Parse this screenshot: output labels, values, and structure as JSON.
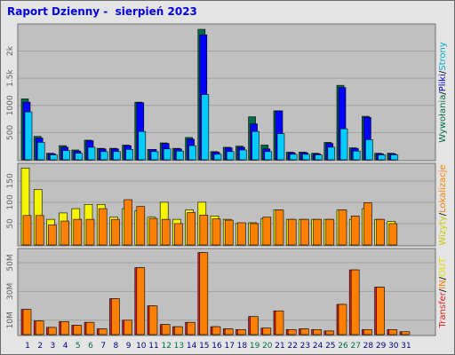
{
  "title": "Raport Dzienny -  sierpień 2023",
  "colors": {
    "background": "#e4e4e4",
    "panel": "#c0c0c0",
    "grid": "#a0a0a0",
    "wizyty": "#f5f500",
    "lokalizacje": "#ff8000",
    "strony": "#00ccff",
    "pliki": "#0000ff",
    "wywolania": "#006b4a",
    "transfer": "#e02020",
    "in": "#ff8000",
    "out": "#ffff00",
    "weekend_label": "#006b4a",
    "weekday_label": "#000080"
  },
  "legends": {
    "top": [
      {
        "text": "Wywołania",
        "color": "#006b4a"
      },
      {
        "text": "/",
        "color": "#000000"
      },
      {
        "text": "Pliki",
        "color": "#0000cc"
      },
      {
        "text": "/",
        "color": "#000000"
      },
      {
        "text": "Strony",
        "color": "#00aacc"
      }
    ],
    "middle": [
      {
        "text": "Wizyty",
        "color": "#c8c800"
      },
      {
        "text": "/",
        "color": "#000000"
      },
      {
        "text": "Lokalizacje",
        "color": "#ff8000"
      }
    ],
    "bottom": [
      {
        "text": "Transfer",
        "color": "#e02020"
      },
      {
        "text": "/",
        "color": "#000000"
      },
      {
        "text": "IN",
        "color": "#ff8000"
      },
      {
        "text": "/",
        "color": "#000000"
      },
      {
        "text": "OUT",
        "color": "#e0e000"
      }
    ]
  },
  "chart_data": [
    {
      "type": "bar",
      "x": [
        1,
        2,
        3,
        4,
        5,
        6,
        7,
        8,
        9,
        10,
        11,
        12,
        13,
        14,
        15,
        16,
        17,
        18,
        19,
        20,
        21,
        22,
        23,
        24,
        25,
        26,
        27,
        28,
        29,
        30,
        31
      ],
      "weekend_days": [
        5,
        6,
        12,
        13,
        19,
        20,
        26,
        27
      ],
      "y_ticks": [
        "500",
        "1000",
        "1.5k",
        "2k"
      ],
      "ylim": [
        0,
        2450
      ],
      "series": [
        {
          "name": "Wywołania",
          "values": [
            1120,
            430,
            120,
            260,
            180,
            360,
            210,
            210,
            270,
            1060,
            190,
            310,
            210,
            410,
            2400,
            150,
            230,
            250,
            790,
            270,
            900,
            140,
            140,
            120,
            320,
            1370,
            220,
            800,
            120,
            120,
            0
          ]
        },
        {
          "name": "Pliki",
          "values": [
            1060,
            400,
            110,
            230,
            160,
            350,
            200,
            200,
            260,
            1050,
            190,
            300,
            200,
            380,
            2300,
            140,
            220,
            230,
            660,
            200,
            900,
            130,
            130,
            110,
            300,
            1330,
            210,
            780,
            110,
            110,
            0
          ]
        },
        {
          "name": "Strony",
          "values": [
            880,
            320,
            90,
            170,
            120,
            230,
            150,
            150,
            190,
            520,
            150,
            200,
            160,
            260,
            1200,
            100,
            150,
            180,
            520,
            150,
            480,
            100,
            100,
            90,
            230,
            570,
            160,
            370,
            90,
            90,
            0
          ]
        }
      ]
    },
    {
      "type": "bar",
      "x": [
        1,
        2,
        3,
        4,
        5,
        6,
        7,
        8,
        9,
        10,
        11,
        12,
        13,
        14,
        15,
        16,
        17,
        18,
        19,
        20,
        21,
        22,
        23,
        24,
        25,
        26,
        27,
        28,
        29,
        30,
        31
      ],
      "y_ticks": [
        "50",
        "100",
        "150"
      ],
      "ylim": [
        0,
        185
      ],
      "series": [
        {
          "name": "Wizyty",
          "values": [
            180,
            130,
            60,
            75,
            85,
            95,
            95,
            65,
            85,
            80,
            65,
            100,
            60,
            82,
            100,
            68,
            60,
            50,
            52,
            62,
            82,
            60,
            60,
            60,
            60,
            82,
            60,
            85,
            60,
            55,
            0
          ]
        },
        {
          "name": "Lokalizacje",
          "values": [
            69,
            69,
            47,
            56,
            60,
            60,
            85,
            60,
            106,
            90,
            62,
            60,
            50,
            76,
            70,
            61,
            58,
            52,
            50,
            65,
            82,
            60,
            60,
            60,
            60,
            82,
            68,
            99,
            60,
            50,
            0
          ]
        }
      ]
    },
    {
      "type": "bar",
      "x": [
        1,
        2,
        3,
        4,
        5,
        6,
        7,
        8,
        9,
        10,
        11,
        12,
        13,
        14,
        15,
        16,
        17,
        18,
        19,
        20,
        21,
        22,
        23,
        24,
        25,
        26,
        27,
        28,
        29,
        30,
        31
      ],
      "y_ticks": [
        "10M",
        "30M",
        "50M"
      ],
      "ylim": [
        0,
        58
      ],
      "series": [
        {
          "name": "Transfer",
          "values": [
            17.5,
            9.5,
            5.0,
            9.0,
            6.5,
            8.5,
            4.0,
            25.0,
            10.0,
            46.5,
            20.0,
            7.0,
            5.5,
            8.5,
            57.0,
            5.5,
            4.0,
            3.5,
            12.5,
            4.5,
            16.5,
            3.5,
            4.0,
            3.5,
            2.5,
            21.0,
            45.0,
            3.5,
            33.0,
            3.5,
            2.0
          ]
        },
        {
          "name": "IN",
          "values": [
            17.5,
            9.5,
            5.0,
            9.0,
            6.5,
            8.5,
            4.0,
            25.0,
            10.0,
            46.5,
            20.0,
            7.0,
            5.5,
            8.5,
            57.0,
            5.5,
            4.0,
            3.5,
            12.5,
            4.5,
            16.5,
            3.5,
            4.0,
            3.5,
            2.5,
            21.0,
            45.0,
            3.5,
            33.0,
            3.5,
            2.0
          ]
        },
        {
          "name": "OUT",
          "values": [
            0,
            0,
            0,
            0,
            0,
            0,
            0,
            0,
            0,
            0,
            0,
            0,
            0,
            0,
            0,
            0,
            0,
            0,
            0,
            0,
            0,
            0,
            0,
            0,
            0,
            0,
            0,
            0,
            0,
            0,
            0
          ]
        }
      ]
    }
  ]
}
